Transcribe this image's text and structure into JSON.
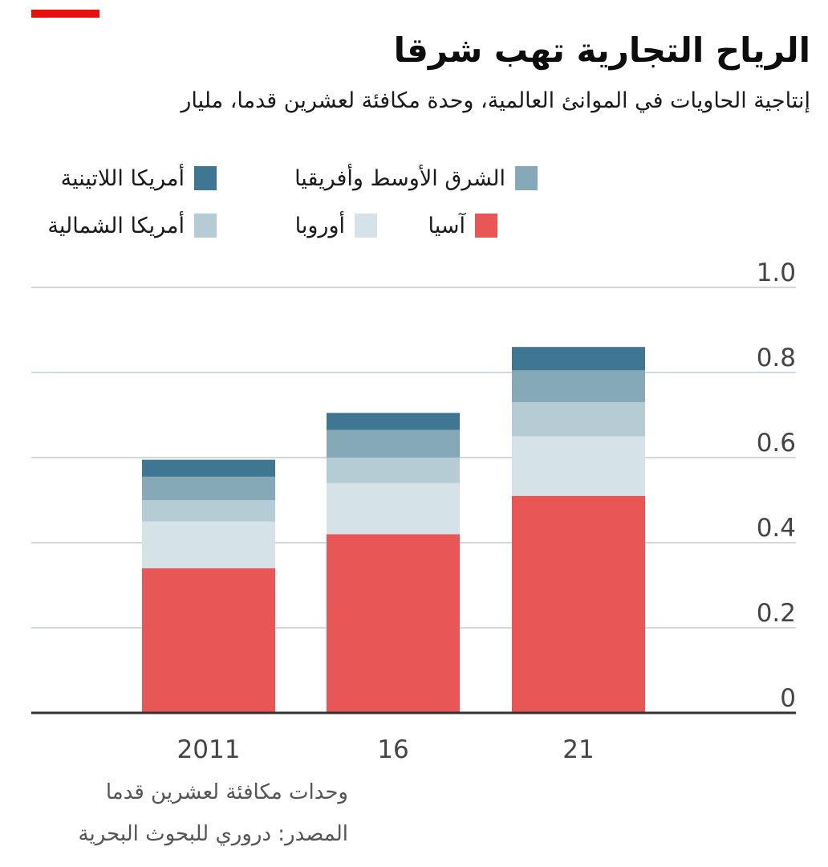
{
  "header": {
    "title": "الرياح التجارية تهب شرقا",
    "subtitle": "إنتاجية الحاويات في الموانئ العالمية، وحدة مكافئة لعشرين قدما، مليار"
  },
  "legend": [
    {
      "label": "أمريكا اللاتينية",
      "color": "#3f7691"
    },
    {
      "label": "الشرق الأوسط وأفريقيا",
      "color": "#86a9b8"
    },
    {
      "label": "أمريكا الشمالية",
      "color": "#b6ccd5"
    },
    {
      "label": "أوروبا",
      "color": "#d5e2e7"
    },
    {
      "label": "آسيا",
      "color": "#e85755"
    }
  ],
  "footer": {
    "units_note": "وحدات مكافئة لعشرين قدما",
    "source": "المصدر: دروري للبحوث البحرية"
  },
  "chart_data": {
    "type": "bar",
    "stacked": true,
    "categories": [
      "2011",
      "16",
      "21"
    ],
    "series": [
      {
        "name": "آسيا",
        "color": "#e85755",
        "values": [
          0.34,
          0.42,
          0.51
        ]
      },
      {
        "name": "أوروبا",
        "color": "#d5e2e7",
        "values": [
          0.11,
          0.12,
          0.14
        ]
      },
      {
        "name": "أمريكا الشمالية",
        "color": "#b6ccd5",
        "values": [
          0.05,
          0.06,
          0.08
        ]
      },
      {
        "name": "الشرق الأوسط وأفريقيا",
        "color": "#86a9b8",
        "values": [
          0.055,
          0.065,
          0.075
        ]
      },
      {
        "name": "أمريكا اللاتينية",
        "color": "#3f7691",
        "values": [
          0.04,
          0.04,
          0.055
        ]
      }
    ],
    "ylim": [
      0,
      1.0
    ],
    "yticks": [
      "0",
      "0.2",
      "0.4",
      "0.6",
      "0.8",
      "1.0"
    ],
    "ytick_values": [
      0,
      0.2,
      0.4,
      0.6,
      0.8,
      1.0
    ],
    "grid": true,
    "yaxis_side": "right",
    "legend_position": "top"
  }
}
